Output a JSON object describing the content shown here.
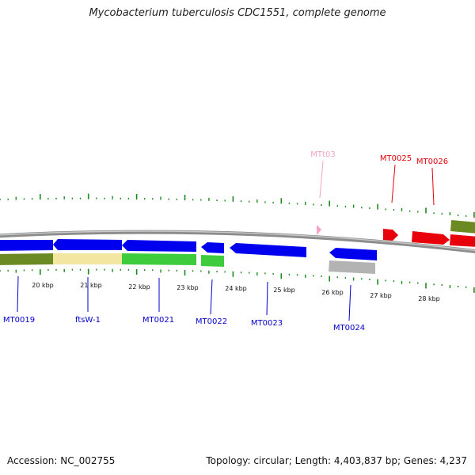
{
  "title": "Mycobacterium tuberculosis CDC1551, complete genome",
  "footer": {
    "accession": "Accession: NC_002755",
    "summary": "Topology: circular; Length: 4,403,837 bp; Genes: 4,237"
  },
  "scale_labels": [
    "20 kbp",
    "21 kbp",
    "22 kbp",
    "23 kbp",
    "24 kbp",
    "25 kbp",
    "26 kbp",
    "27 kbp",
    "28 kbp"
  ],
  "genes_above": [
    {
      "name": "MTt03",
      "color": "#f4a3c5",
      "kind": "tRNA"
    },
    {
      "name": "MT0025",
      "color": "#e8000b"
    },
    {
      "name": "MT0026",
      "color": "#e8000b"
    }
  ],
  "genes_below": [
    {
      "name": "MT0019",
      "color": "#0000cc"
    },
    {
      "name": "ftsW-1",
      "color": "#0000cc"
    },
    {
      "name": "MT0021",
      "color": "#0000cc"
    },
    {
      "name": "MT0022",
      "color": "#0000cc"
    },
    {
      "name": "MT0023",
      "color": "#0000cc"
    },
    {
      "name": "MT0024",
      "color": "#0000cc"
    }
  ],
  "colors": {
    "backbone": "#8c8c8c",
    "tick": "#1a8a1a",
    "forward_gene": "#e8000b",
    "reverse_gene": "#0000ee",
    "trna": "#f4a3c5",
    "category_olive": "#6b8a22",
    "category_yellow": "#f2e6a0",
    "category_green": "#3ccc3c",
    "category_gray": "#b3b3b3"
  }
}
